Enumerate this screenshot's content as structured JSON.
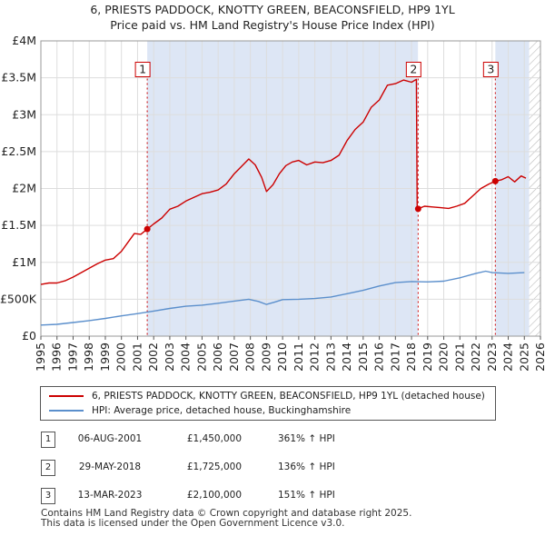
{
  "title": {
    "line1": "6, PRIESTS PADDOCK, KNOTTY GREEN, BEACONSFIELD, HP9 1YL",
    "line2": "Price paid vs. HM Land Registry's House Price Index (HPI)"
  },
  "colors": {
    "property": "#cc0000",
    "hpi": "#5b8fcc",
    "shade": "#dde6f5",
    "grid": "#ffffff",
    "plot_bg": "#ffffff",
    "marker": "#cc0000"
  },
  "legend": {
    "property_label": "6, PRIESTS PADDOCK, KNOTTY GREEN, BEACONSFIELD, HP9 1YL (detached house)",
    "hpi_label": "HPI: Average price, detached house, Buckinghamshire"
  },
  "sales": [
    {
      "num": "1",
      "date": "06-AUG-2001",
      "price": "£1,450,000",
      "hpi_change": "361% ↑ HPI"
    },
    {
      "num": "2",
      "date": "29-MAY-2018",
      "price": "£1,725,000",
      "hpi_change": "136% ↑ HPI"
    },
    {
      "num": "3",
      "date": "13-MAR-2023",
      "price": "£2,100,000",
      "hpi_change": "151% ↑ HPI"
    }
  ],
  "footer": {
    "line1": "Contains HM Land Registry data © Crown copyright and database right 2025.",
    "line2": "This data is licensed under the Open Government Licence v3.0."
  },
  "chart_data": {
    "type": "line",
    "title": "6, PRIESTS PADDOCK, KNOTTY GREEN, BEACONSFIELD, HP9 1YL — Price paid vs. HM Land Registry's House Price Index (HPI)",
    "xlabel": "",
    "ylabel": "",
    "xlim": [
      1995,
      2026
    ],
    "ylim": [
      0,
      4000000
    ],
    "x_ticks": [
      "1995",
      "1996",
      "1997",
      "1998",
      "1999",
      "2000",
      "2001",
      "2002",
      "2003",
      "2004",
      "2005",
      "2006",
      "2007",
      "2008",
      "2009",
      "2010",
      "2011",
      "2012",
      "2013",
      "2014",
      "2015",
      "2016",
      "2017",
      "2018",
      "2019",
      "2020",
      "2021",
      "2022",
      "2023",
      "2024",
      "2025",
      "2026"
    ],
    "y_ticks": [
      {
        "value": 0,
        "label": "£0"
      },
      {
        "value": 500000,
        "label": "£500K"
      },
      {
        "value": 1000000,
        "label": "£1M"
      },
      {
        "value": 1500000,
        "label": "£1.5M"
      },
      {
        "value": 2000000,
        "label": "£2M"
      },
      {
        "value": 2500000,
        "label": "£2.5M"
      },
      {
        "value": 3000000,
        "label": "£3M"
      },
      {
        "value": 3500000,
        "label": "£3.5M"
      },
      {
        "value": 4000000,
        "label": "£4M"
      }
    ],
    "shaded_ranges": [
      [
        2001.6,
        2018.4
      ],
      [
        2023.2,
        2025.3
      ]
    ],
    "hatched_range": [
      2025.3,
      2026
    ],
    "grid": true,
    "series": [
      {
        "name": "6, PRIESTS PADDOCK, KNOTTY GREEN, BEACONSFIELD, HP9 1YL (detached house)",
        "color": "#cc0000",
        "points": [
          [
            1995.0,
            700000
          ],
          [
            1995.5,
            720000
          ],
          [
            1996.0,
            720000
          ],
          [
            1996.5,
            750000
          ],
          [
            1997.0,
            800000
          ],
          [
            1997.5,
            860000
          ],
          [
            1998.0,
            920000
          ],
          [
            1998.5,
            980000
          ],
          [
            1999.0,
            1030000
          ],
          [
            1999.5,
            1050000
          ],
          [
            2000.0,
            1150000
          ],
          [
            2000.4,
            1270000
          ],
          [
            2000.8,
            1390000
          ],
          [
            2001.2,
            1380000
          ],
          [
            2001.6,
            1450000
          ],
          [
            2002.0,
            1520000
          ],
          [
            2002.5,
            1600000
          ],
          [
            2003.0,
            1720000
          ],
          [
            2003.5,
            1760000
          ],
          [
            2004.0,
            1830000
          ],
          [
            2004.5,
            1880000
          ],
          [
            2005.0,
            1930000
          ],
          [
            2005.5,
            1950000
          ],
          [
            2006.0,
            1980000
          ],
          [
            2006.5,
            2060000
          ],
          [
            2007.0,
            2200000
          ],
          [
            2007.5,
            2310000
          ],
          [
            2007.9,
            2400000
          ],
          [
            2008.3,
            2320000
          ],
          [
            2008.7,
            2150000
          ],
          [
            2009.0,
            1960000
          ],
          [
            2009.4,
            2050000
          ],
          [
            2009.8,
            2200000
          ],
          [
            2010.2,
            2310000
          ],
          [
            2010.6,
            2360000
          ],
          [
            2011.0,
            2380000
          ],
          [
            2011.5,
            2320000
          ],
          [
            2012.0,
            2360000
          ],
          [
            2012.5,
            2350000
          ],
          [
            2013.0,
            2380000
          ],
          [
            2013.5,
            2450000
          ],
          [
            2014.0,
            2650000
          ],
          [
            2014.5,
            2800000
          ],
          [
            2015.0,
            2900000
          ],
          [
            2015.5,
            3100000
          ],
          [
            2016.0,
            3200000
          ],
          [
            2016.5,
            3400000
          ],
          [
            2017.0,
            3420000
          ],
          [
            2017.5,
            3470000
          ],
          [
            2018.0,
            3440000
          ],
          [
            2018.3,
            3480000
          ],
          [
            2018.35,
            1725000
          ],
          [
            2018.41,
            1725000
          ],
          [
            2018.8,
            1760000
          ],
          [
            2019.3,
            1750000
          ],
          [
            2019.8,
            1740000
          ],
          [
            2020.3,
            1730000
          ],
          [
            2020.8,
            1760000
          ],
          [
            2021.3,
            1800000
          ],
          [
            2021.8,
            1900000
          ],
          [
            2022.3,
            2000000
          ],
          [
            2022.8,
            2060000
          ],
          [
            2023.2,
            2100000
          ],
          [
            2023.6,
            2120000
          ],
          [
            2024.0,
            2160000
          ],
          [
            2024.4,
            2090000
          ],
          [
            2024.8,
            2170000
          ],
          [
            2025.1,
            2140000
          ]
        ]
      },
      {
        "name": "HPI: Average price, detached house, Buckinghamshire",
        "color": "#5b8fcc",
        "points": [
          [
            1995.0,
            150000
          ],
          [
            1996.0,
            160000
          ],
          [
            1997.0,
            185000
          ],
          [
            1998.0,
            210000
          ],
          [
            1999.0,
            240000
          ],
          [
            2000.0,
            275000
          ],
          [
            2001.0,
            305000
          ],
          [
            2002.0,
            340000
          ],
          [
            2003.0,
            375000
          ],
          [
            2004.0,
            405000
          ],
          [
            2005.0,
            420000
          ],
          [
            2006.0,
            445000
          ],
          [
            2007.0,
            475000
          ],
          [
            2007.9,
            500000
          ],
          [
            2008.5,
            470000
          ],
          [
            2009.0,
            430000
          ],
          [
            2009.5,
            460000
          ],
          [
            2010.0,
            495000
          ],
          [
            2011.0,
            500000
          ],
          [
            2012.0,
            510000
          ],
          [
            2013.0,
            530000
          ],
          [
            2014.0,
            575000
          ],
          [
            2015.0,
            620000
          ],
          [
            2016.0,
            680000
          ],
          [
            2017.0,
            725000
          ],
          [
            2018.0,
            740000
          ],
          [
            2019.0,
            735000
          ],
          [
            2020.0,
            745000
          ],
          [
            2021.0,
            790000
          ],
          [
            2022.0,
            850000
          ],
          [
            2022.6,
            880000
          ],
          [
            2023.0,
            860000
          ],
          [
            2024.0,
            850000
          ],
          [
            2025.0,
            860000
          ]
        ]
      }
    ],
    "markers": [
      {
        "label": "1",
        "x": 2001.6,
        "y": 1450000
      },
      {
        "label": "2",
        "x": 2018.41,
        "y": 1725000
      },
      {
        "label": "3",
        "x": 2023.2,
        "y": 2100000
      }
    ],
    "marker_box_value": 3600000
  }
}
